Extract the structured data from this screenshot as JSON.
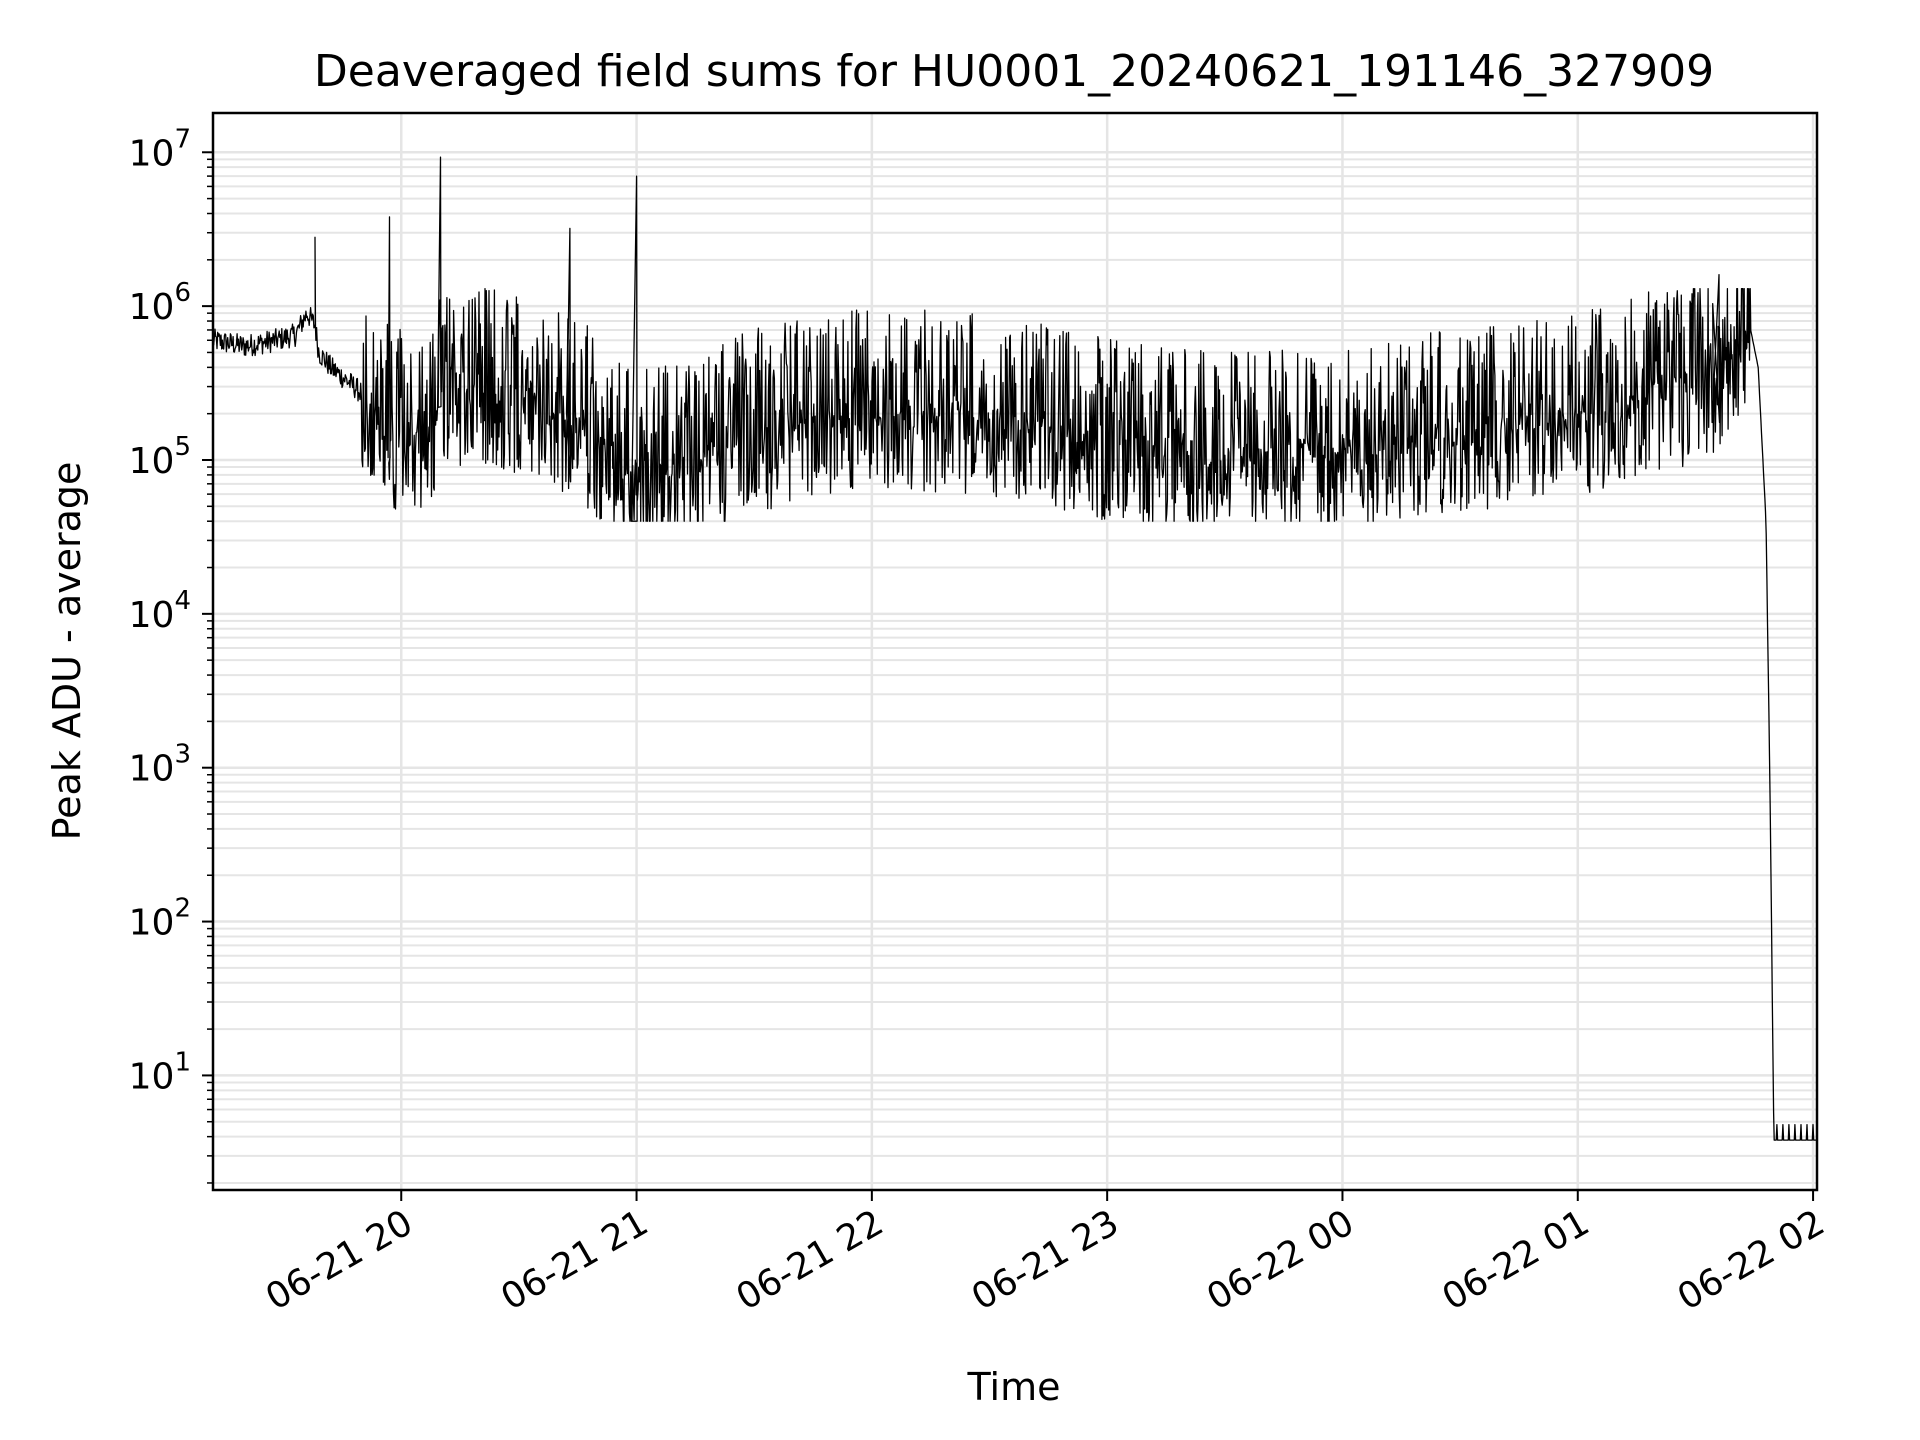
{
  "chart_data": {
    "type": "line",
    "title": "Deaveraged field sums for HU0001_20240621_191146_327909",
    "xlabel": "Time",
    "ylabel": "Peak ADU - average",
    "yscale": "log",
    "grid": true,
    "line_color": "#000000",
    "grid_color": "#e5e5e5",
    "x_range": [
      "2024-06-21 19:12",
      "2024-06-22 02:01"
    ],
    "ylim": [
      1.8,
      18000000
    ],
    "x_ticks": [
      {
        "value": "2024-06-21 20:00",
        "label": "06-21 20"
      },
      {
        "value": "2024-06-21 21:00",
        "label": "06-21 21"
      },
      {
        "value": "2024-06-21 22:00",
        "label": "06-21 22"
      },
      {
        "value": "2024-06-21 23:00",
        "label": "06-21 23"
      },
      {
        "value": "2024-06-22 00:00",
        "label": "06-22 00"
      },
      {
        "value": "2024-06-22 01:00",
        "label": "06-22 01"
      },
      {
        "value": "2024-06-22 02:00",
        "label": "06-22 02"
      }
    ],
    "y_ticks": [
      {
        "value": 10,
        "base": "10",
        "exp": "1"
      },
      {
        "value": 100,
        "base": "10",
        "exp": "2"
      },
      {
        "value": 1000,
        "base": "10",
        "exp": "3"
      },
      {
        "value": 10000,
        "base": "10",
        "exp": "4"
      },
      {
        "value": 100000,
        "base": "10",
        "exp": "5"
      },
      {
        "value": 1000000,
        "base": "10",
        "exp": "6"
      },
      {
        "value": 10000000,
        "base": "10",
        "exp": "7"
      }
    ],
    "series": [
      {
        "x": [
          "2024-06-21 19:12",
          "2024-06-21 19:20",
          "2024-06-21 19:28",
          "2024-06-21 19:33",
          "2024-06-21 19:36",
          "2024-06-21 19:38",
          "2024-06-21 19:39",
          "2024-06-21 19:42",
          "2024-06-21 19:48",
          "2024-06-21 19:53",
          "2024-06-21 19:58",
          "2024-06-21 20:05",
          "2024-06-21 20:10",
          "2024-06-21 20:20",
          "2024-06-21 20:35",
          "2024-06-21 20:45",
          "2024-06-21 20:50",
          "2024-06-21 21:00",
          "2024-06-21 21:15",
          "2024-06-21 21:30",
          "2024-06-21 21:45",
          "2024-06-21 22:00",
          "2024-06-21 22:30",
          "2024-06-21 23:00",
          "2024-06-21 23:30",
          "2024-06-22 00:00",
          "2024-06-22 00:30",
          "2024-06-22 01:00",
          "2024-06-22 01:15",
          "2024-06-22 01:30",
          "2024-06-22 01:38",
          "2024-06-22 01:42",
          "2024-06-22 01:44",
          "2024-06-22 01:46",
          "2024-06-22 01:48",
          "2024-06-22 01:49",
          "2024-06-22 01:50",
          "2024-06-22 02:01"
        ],
        "y": [
          600000,
          550000,
          600000,
          650000,
          900000,
          750000,
          500000,
          400000,
          300000,
          230000,
          190000,
          150000,
          300000,
          350000,
          280000,
          220000,
          160000,
          100000,
          120000,
          180000,
          220000,
          260000,
          230000,
          160000,
          130000,
          140000,
          180000,
          230000,
          300000,
          380000,
          500000,
          650000,
          720000,
          400000,
          40000,
          800,
          3.8,
          3.8
        ]
      }
    ],
    "spikes": {
      "x": [
        "2024-06-21 19:38",
        "2024-06-21 19:57",
        "2024-06-21 20:10",
        "2024-06-21 20:43",
        "2024-06-21 21:00",
        "2024-06-22 01:36"
      ],
      "y": [
        2800000,
        3800000,
        9300000,
        3200000,
        7000000,
        1600000
      ]
    }
  }
}
